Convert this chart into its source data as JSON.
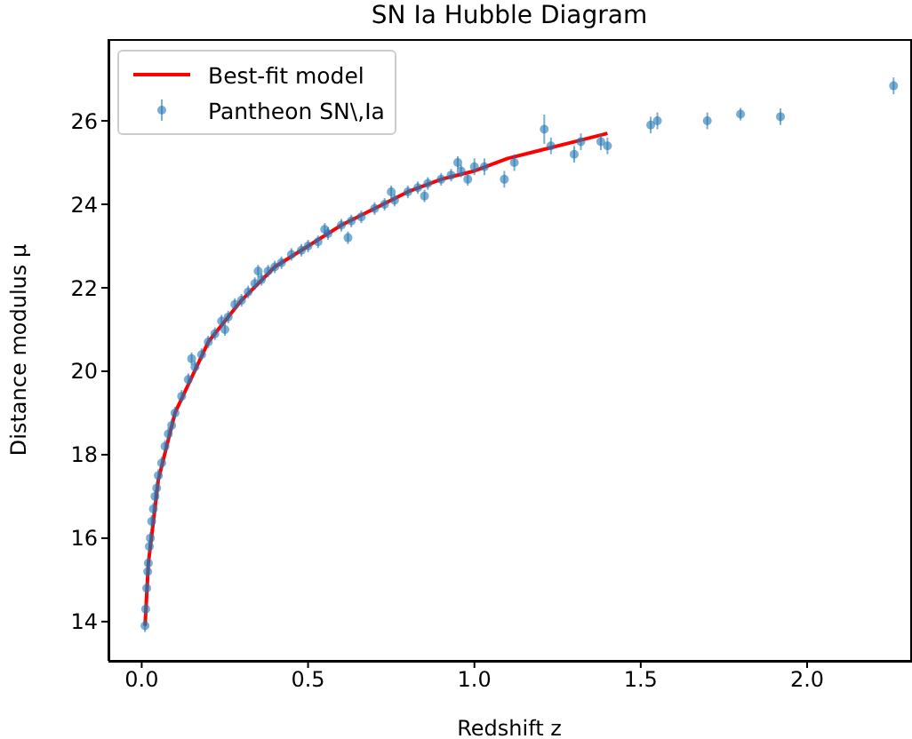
{
  "chart_data": {
    "type": "scatter",
    "title": "SN Ia Hubble Diagram",
    "xlabel": "Redshift z",
    "ylabel": "Distance modulus μ",
    "xlim": [
      -0.1,
      2.31
    ],
    "ylim": [
      13.06,
      27.96
    ],
    "xticks": [
      {
        "value": 0,
        "label": "0.0"
      },
      {
        "value": 0.5,
        "label": "0.5"
      },
      {
        "value": 1,
        "label": "1.0"
      },
      {
        "value": 1.5,
        "label": "1.5"
      },
      {
        "value": 2,
        "label": "2.0"
      }
    ],
    "yticks": [
      14,
      16,
      18,
      20,
      22,
      24,
      26
    ],
    "grid": false,
    "legend": "top left",
    "series": [
      {
        "name": "Best-fit model",
        "type": "line",
        "color": "#ff0000",
        "marker": "none",
        "line_style": "solid",
        "x": [
          0.01,
          0.02,
          0.05,
          0.1,
          0.2,
          0.3,
          0.4,
          0.5,
          0.6,
          0.7,
          0.8,
          0.9,
          1.0,
          1.1,
          1.2,
          1.3,
          1.4
        ],
        "values": [
          13.9,
          15.4,
          17.4,
          19.0,
          20.7,
          21.7,
          22.5,
          23.0,
          23.5,
          23.9,
          24.3,
          24.6,
          24.8,
          25.1,
          25.3,
          25.5,
          25.7
        ]
      },
      {
        "name": "Pantheon SN\\,Ia",
        "color": "#1f77b4",
        "marker": "circle",
        "x": [
          0.01,
          0.012,
          0.015,
          0.018,
          0.02,
          0.023,
          0.026,
          0.03,
          0.035,
          0.04,
          0.045,
          0.05,
          0.06,
          0.07,
          0.08,
          0.09,
          0.1,
          0.12,
          0.14,
          0.15,
          0.16,
          0.18,
          0.2,
          0.22,
          0.24,
          0.25,
          0.26,
          0.28,
          0.3,
          0.32,
          0.34,
          0.35,
          0.36,
          0.38,
          0.4,
          0.42,
          0.45,
          0.48,
          0.5,
          0.53,
          0.55,
          0.56,
          0.6,
          0.62,
          0.63,
          0.66,
          0.7,
          0.73,
          0.75,
          0.76,
          0.8,
          0.83,
          0.85,
          0.86,
          0.9,
          0.93,
          0.95,
          0.96,
          0.98,
          1.0,
          1.03,
          1.09,
          1.12,
          1.21,
          1.23,
          1.3,
          1.32,
          1.38,
          1.4,
          1.53,
          1.55,
          1.7,
          1.8,
          1.92,
          2.26
        ],
        "values": [
          13.9,
          14.3,
          14.8,
          15.2,
          15.4,
          15.8,
          16.0,
          16.4,
          16.7,
          17.0,
          17.2,
          17.5,
          17.8,
          18.2,
          18.5,
          18.7,
          19.0,
          19.4,
          19.8,
          20.3,
          20.1,
          20.4,
          20.7,
          20.9,
          21.2,
          21.0,
          21.3,
          21.6,
          21.7,
          21.9,
          22.1,
          22.4,
          22.2,
          22.4,
          22.5,
          22.6,
          22.8,
          22.9,
          23.0,
          23.1,
          23.4,
          23.3,
          23.5,
          23.2,
          23.6,
          23.7,
          23.9,
          24.0,
          24.3,
          24.1,
          24.3,
          24.4,
          24.2,
          24.5,
          24.6,
          24.7,
          25.0,
          24.8,
          24.6,
          24.9,
          24.9,
          24.6,
          25.0,
          25.8,
          25.4,
          25.2,
          25.5,
          25.5,
          25.4,
          25.9,
          26.0,
          26.0,
          26.16,
          26.1,
          26.84
        ],
        "errors": [
          0.15,
          0.15,
          0.15,
          0.15,
          0.15,
          0.15,
          0.15,
          0.15,
          0.15,
          0.15,
          0.15,
          0.15,
          0.15,
          0.15,
          0.15,
          0.15,
          0.15,
          0.15,
          0.15,
          0.15,
          0.15,
          0.15,
          0.15,
          0.15,
          0.15,
          0.15,
          0.15,
          0.15,
          0.15,
          0.15,
          0.15,
          0.15,
          0.15,
          0.15,
          0.15,
          0.15,
          0.15,
          0.15,
          0.15,
          0.15,
          0.15,
          0.15,
          0.15,
          0.15,
          0.15,
          0.15,
          0.15,
          0.15,
          0.15,
          0.15,
          0.15,
          0.15,
          0.15,
          0.15,
          0.15,
          0.15,
          0.15,
          0.15,
          0.15,
          0.2,
          0.2,
          0.2,
          0.2,
          0.35,
          0.2,
          0.2,
          0.2,
          0.2,
          0.2,
          0.2,
          0.2,
          0.2,
          0.15,
          0.2,
          0.2
        ]
      }
    ]
  }
}
